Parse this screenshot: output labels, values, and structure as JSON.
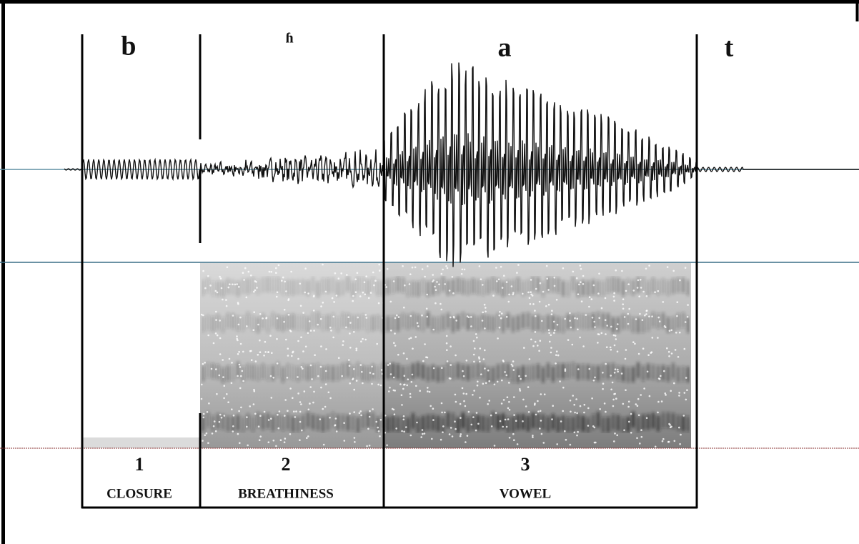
{
  "segments": [
    {
      "symbol": "b",
      "number": "1",
      "name": "CLOSURE"
    },
    {
      "symbol": "ɦ",
      "number": "2",
      "name": "BREATHINESS"
    },
    {
      "symbol": "a",
      "number": "3",
      "name": "VOWEL"
    },
    {
      "symbol": "t"
    }
  ]
}
